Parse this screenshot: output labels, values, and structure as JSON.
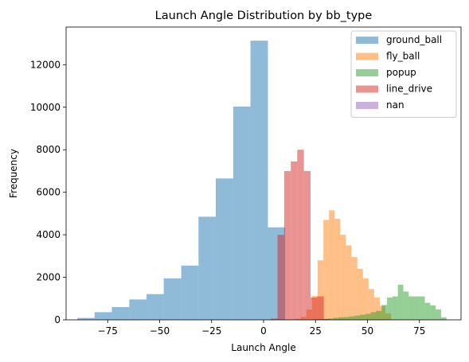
{
  "chart_data": {
    "type": "histogram",
    "title": "Launch Angle Distribution by bb_type",
    "xlabel": "Launch Angle",
    "ylabel": "Frequency",
    "xlim": [
      -95,
      95
    ],
    "ylim": [
      0,
      13770
    ],
    "xticks": [
      -75,
      -50,
      -25,
      0,
      25,
      50,
      75
    ],
    "yticks": [
      0,
      2000,
      4000,
      6000,
      8000,
      10000,
      12000
    ],
    "legend_position": "top-right",
    "alpha": 0.5,
    "series": [
      {
        "name": "ground_ball",
        "color": "#1f77b4",
        "bins": [
          {
            "x0": -89.6,
            "x1": -81.3,
            "count": 90
          },
          {
            "x0": -81.3,
            "x1": -73.0,
            "count": 360
          },
          {
            "x0": -73.0,
            "x1": -64.6,
            "count": 600
          },
          {
            "x0": -64.6,
            "x1": -56.3,
            "count": 960
          },
          {
            "x0": -56.3,
            "x1": -48.0,
            "count": 1210
          },
          {
            "x0": -48.0,
            "x1": -39.6,
            "count": 1950
          },
          {
            "x0": -39.6,
            "x1": -31.3,
            "count": 2550
          },
          {
            "x0": -31.3,
            "x1": -23.0,
            "count": 4850
          },
          {
            "x0": -23.0,
            "x1": -14.6,
            "count": 6650
          },
          {
            "x0": -14.6,
            "x1": -6.3,
            "count": 10030
          },
          {
            "x0": -6.3,
            "x1": 2.1,
            "count": 13130
          },
          {
            "x0": 2.1,
            "x1": 10.4,
            "count": 4350
          }
        ]
      },
      {
        "name": "fly_ball",
        "color": "#ff7f0e",
        "bins": [
          {
            "x0": 7.0,
            "x1": 9.7,
            "count": 5
          },
          {
            "x0": 9.7,
            "x1": 12.5,
            "count": 10
          },
          {
            "x0": 12.5,
            "x1": 15.2,
            "count": 20
          },
          {
            "x0": 15.2,
            "x1": 17.9,
            "count": 45
          },
          {
            "x0": 17.9,
            "x1": 20.6,
            "count": 140
          },
          {
            "x0": 20.6,
            "x1": 23.3,
            "count": 480
          },
          {
            "x0": 23.3,
            "x1": 26.0,
            "count": 1120
          },
          {
            "x0": 26.0,
            "x1": 28.8,
            "count": 2800
          },
          {
            "x0": 28.8,
            "x1": 31.5,
            "count": 4700
          },
          {
            "x0": 31.5,
            "x1": 34.2,
            "count": 5150
          },
          {
            "x0": 34.2,
            "x1": 36.9,
            "count": 4750
          },
          {
            "x0": 36.9,
            "x1": 39.6,
            "count": 4000
          },
          {
            "x0": 39.6,
            "x1": 42.3,
            "count": 3500
          },
          {
            "x0": 42.3,
            "x1": 45.1,
            "count": 2950
          },
          {
            "x0": 45.1,
            "x1": 47.8,
            "count": 2400
          },
          {
            "x0": 47.8,
            "x1": 50.5,
            "count": 1950
          },
          {
            "x0": 50.5,
            "x1": 53.2,
            "count": 1450
          },
          {
            "x0": 53.2,
            "x1": 55.9,
            "count": 1050
          },
          {
            "x0": 55.9,
            "x1": 58.6,
            "count": 650
          },
          {
            "x0": 58.6,
            "x1": 61.4,
            "count": 300
          }
        ]
      },
      {
        "name": "popup",
        "color": "#2ca02c",
        "bins": [
          {
            "x0": 23.0,
            "x1": 25.6,
            "count": 15
          },
          {
            "x0": 25.6,
            "x1": 28.2,
            "count": 35
          },
          {
            "x0": 28.2,
            "x1": 30.8,
            "count": 40
          },
          {
            "x0": 30.8,
            "x1": 33.4,
            "count": 60
          },
          {
            "x0": 33.4,
            "x1": 36.0,
            "count": 90
          },
          {
            "x0": 36.0,
            "x1": 38.6,
            "count": 120
          },
          {
            "x0": 38.6,
            "x1": 41.2,
            "count": 130
          },
          {
            "x0": 41.2,
            "x1": 43.8,
            "count": 160
          },
          {
            "x0": 43.8,
            "x1": 46.4,
            "count": 200
          },
          {
            "x0": 46.4,
            "x1": 49.0,
            "count": 240
          },
          {
            "x0": 49.0,
            "x1": 51.6,
            "count": 280
          },
          {
            "x0": 51.6,
            "x1": 54.2,
            "count": 360
          },
          {
            "x0": 54.2,
            "x1": 56.8,
            "count": 420
          },
          {
            "x0": 56.8,
            "x1": 59.4,
            "count": 700
          },
          {
            "x0": 59.4,
            "x1": 62.0,
            "count": 1050
          },
          {
            "x0": 62.0,
            "x1": 64.6,
            "count": 1100
          },
          {
            "x0": 64.6,
            "x1": 67.2,
            "count": 1650
          },
          {
            "x0": 67.2,
            "x1": 69.8,
            "count": 1330
          },
          {
            "x0": 69.8,
            "x1": 72.4,
            "count": 1100
          },
          {
            "x0": 72.4,
            "x1": 75.0,
            "count": 1100
          },
          {
            "x0": 75.0,
            "x1": 77.6,
            "count": 1100
          },
          {
            "x0": 77.6,
            "x1": 80.2,
            "count": 800
          },
          {
            "x0": 80.2,
            "x1": 82.8,
            "count": 680
          },
          {
            "x0": 82.8,
            "x1": 85.4,
            "count": 490
          },
          {
            "x0": 85.4,
            "x1": 88.0,
            "count": 120
          }
        ]
      },
      {
        "name": "line_drive",
        "color": "#d62728",
        "bins": [
          {
            "x0": 0.4,
            "x1": 3.5,
            "count": 10
          },
          {
            "x0": 3.5,
            "x1": 6.7,
            "count": 60
          },
          {
            "x0": 6.7,
            "x1": 9.9,
            "count": 4000
          },
          {
            "x0": 9.9,
            "x1": 13.1,
            "count": 7000
          },
          {
            "x0": 13.1,
            "x1": 16.2,
            "count": 7450
          },
          {
            "x0": 16.2,
            "x1": 19.4,
            "count": 8000
          },
          {
            "x0": 19.4,
            "x1": 22.6,
            "count": 7000
          },
          {
            "x0": 22.6,
            "x1": 25.8,
            "count": 1050
          },
          {
            "x0": 25.8,
            "x1": 29.0,
            "count": 1100
          },
          {
            "x0": 29.0,
            "x1": 32.1,
            "count": 40
          }
        ]
      },
      {
        "name": "nan",
        "color": "#9467bd",
        "bins": []
      }
    ]
  }
}
